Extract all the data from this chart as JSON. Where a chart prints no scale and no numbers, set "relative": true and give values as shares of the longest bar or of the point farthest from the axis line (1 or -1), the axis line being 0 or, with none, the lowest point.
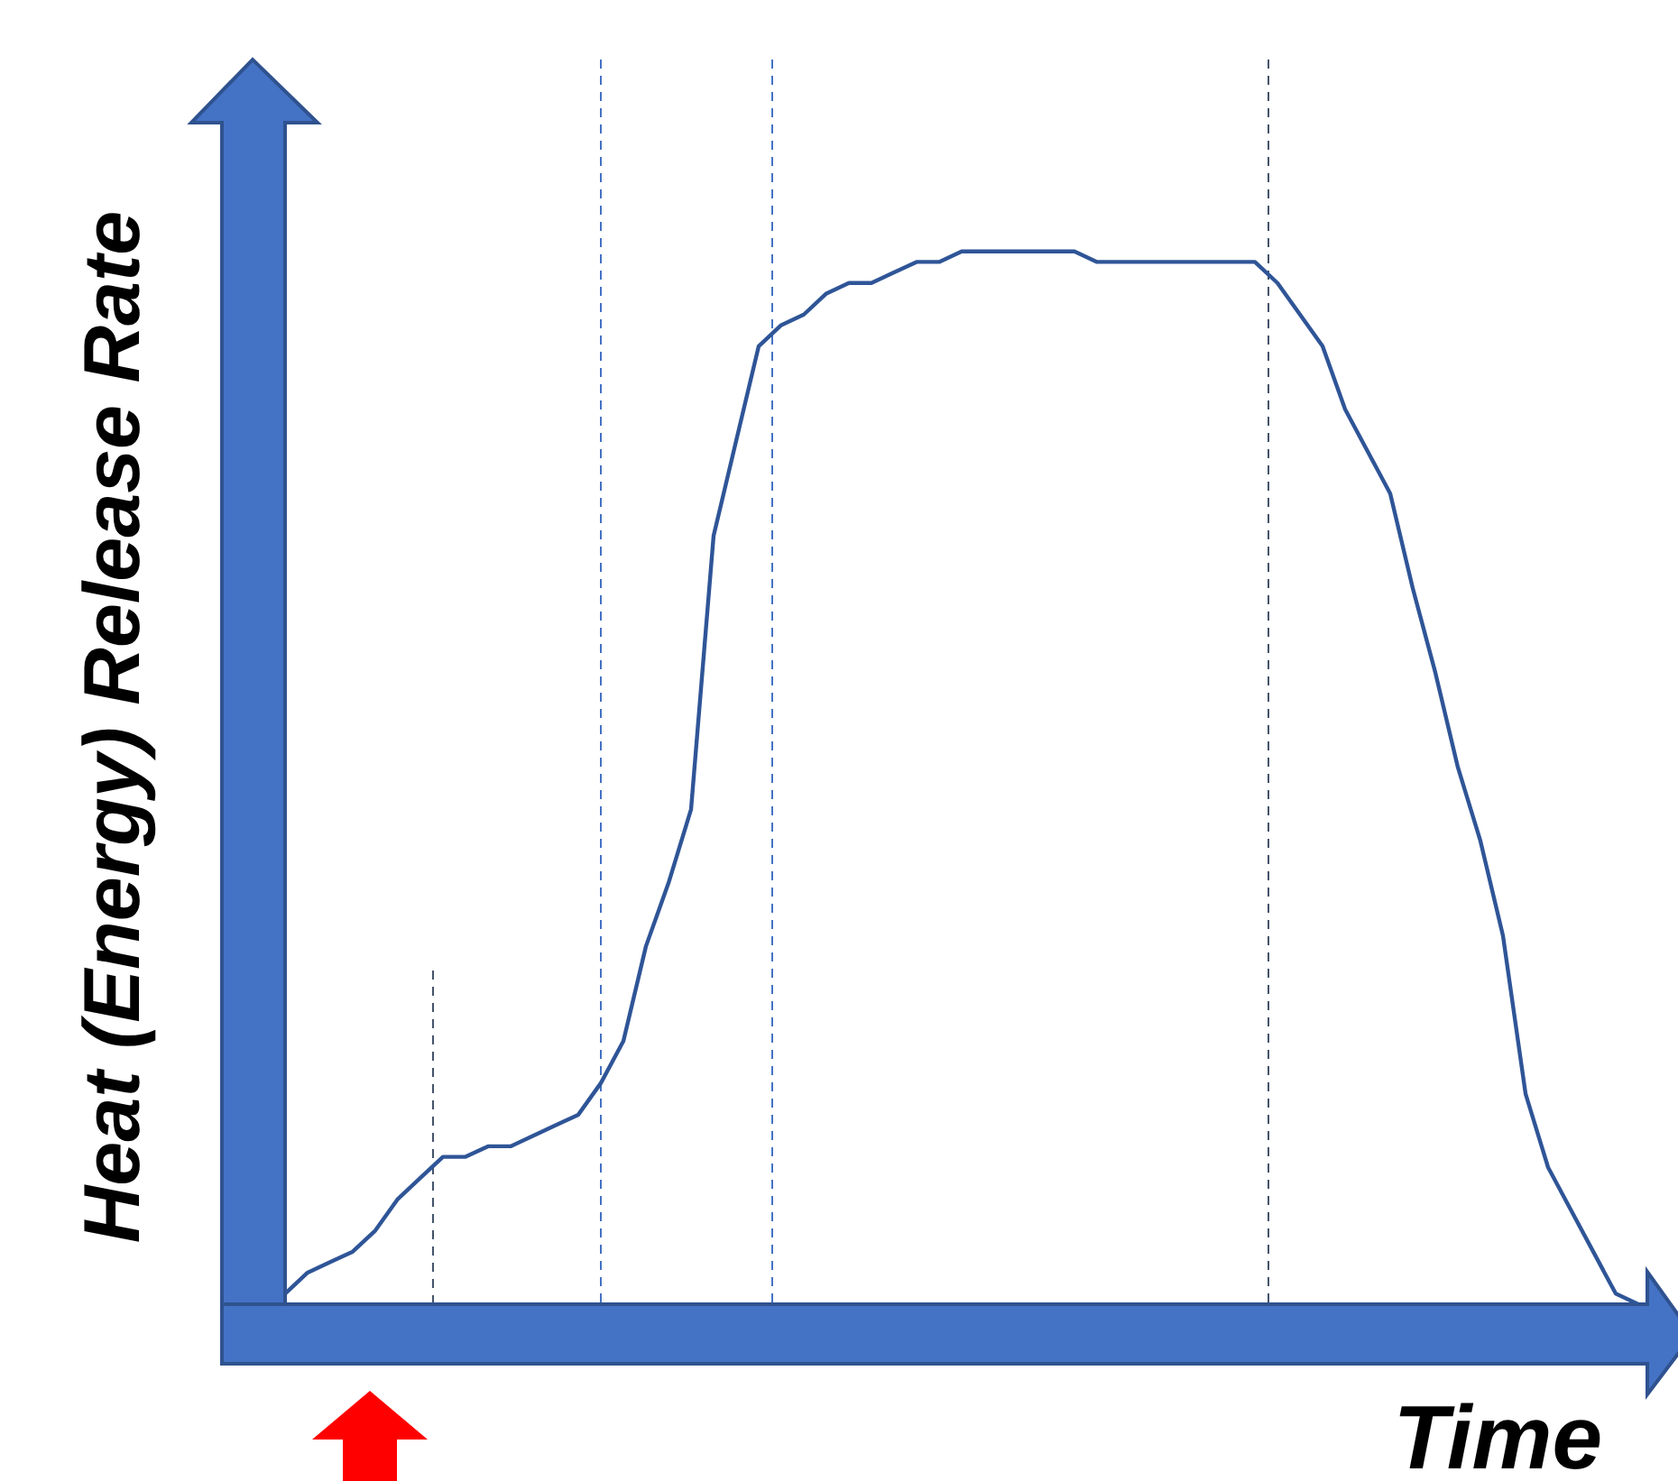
{
  "chart_data": {
    "type": "line",
    "relative": true,
    "xlabel": "Time",
    "ylabel": "Heat (Energy) Release Rate",
    "legend": false,
    "marker": "none",
    "line_style": "solid",
    "categories": [
      null,
      null,
      null,
      null,
      null,
      null,
      null,
      null,
      null,
      null,
      null,
      null,
      null,
      null,
      null,
      null,
      null,
      null,
      null,
      null,
      null,
      null,
      null,
      null,
      null,
      null,
      null,
      null,
      null,
      null,
      null,
      null,
      null,
      null,
      null,
      null,
      null,
      null,
      null,
      null,
      null,
      null,
      null,
      null,
      null,
      null,
      null,
      null,
      null,
      null,
      null,
      null,
      null,
      null,
      null,
      null,
      null,
      null,
      null,
      null,
      null
    ],
    "series": [
      {
        "color": "#2f5597",
        "values": [
          0.01,
          0.03,
          0.04,
          0.05,
          0.07,
          0.1,
          0.12,
          0.14,
          0.14,
          0.15,
          0.15,
          0.16,
          0.17,
          0.18,
          0.21,
          0.25,
          0.34,
          0.4,
          0.47,
          0.73,
          0.82,
          0.91,
          0.93,
          0.94,
          0.96,
          0.97,
          0.97,
          0.98,
          0.99,
          0.99,
          1.0,
          1.0,
          1.0,
          1.0,
          1.0,
          1.0,
          0.99,
          0.99,
          0.99,
          0.99,
          0.99,
          0.99,
          0.99,
          0.99,
          0.97,
          0.94,
          0.91,
          0.85,
          0.81,
          0.77,
          0.68,
          0.6,
          0.51,
          0.44,
          0.35,
          0.2,
          0.13,
          0.09,
          0.05,
          0.01,
          0
        ]
      }
    ]
  }
}
